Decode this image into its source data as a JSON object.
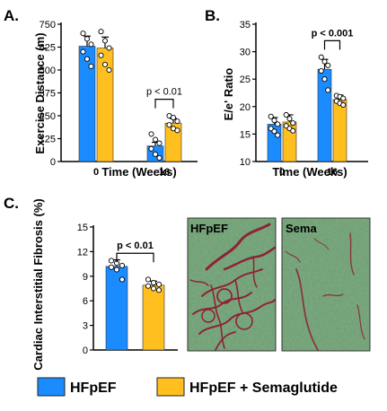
{
  "colors": {
    "hfpef": "#1a8cff",
    "sema": "#ffbf1f",
    "tissue_green": "#6f9e72",
    "fibrosis_red": "#8c2336"
  },
  "legend": [
    {
      "label": "HFpEF",
      "color": "#1a8cff"
    },
    {
      "label": "HFpEF + Semaglutide",
      "color": "#ffbf1f"
    }
  ],
  "chart_data": [
    {
      "panel": "A.",
      "type": "bar",
      "ylabel": "Exercise Distance (m)",
      "xlabel": "Time (Weeks)",
      "categories": [
        "0",
        "16"
      ],
      "ylim": [
        0,
        750
      ],
      "yticks": [
        "0",
        "125",
        "250",
        "375",
        "500",
        "625",
        "750"
      ],
      "series": [
        {
          "name": "HFpEF",
          "values": [
            630,
            85
          ],
          "errors": [
            55,
            20
          ],
          "points": [
            [
              700,
              670,
              640,
              600,
              560,
              520
            ],
            [
              150,
              120,
              100,
              70,
              40,
              20
            ]
          ]
        },
        {
          "name": "HFpEF + Semaglutide",
          "values": [
            620,
            210
          ],
          "errors": [
            60,
            25
          ],
          "points": [
            [
              710,
              660,
              620,
              580,
              530,
              500
            ],
            [
              250,
              240,
              220,
              200,
              180,
              170
            ]
          ]
        }
      ],
      "annotation": {
        "text": "p < 0.01",
        "category": "16"
      }
    },
    {
      "panel": "B.",
      "type": "bar",
      "ylabel": "E/e' Ratio",
      "xlabel": "Time (Weeks)",
      "categories": [
        "0",
        "16"
      ],
      "ylim": [
        10,
        35
      ],
      "yticks": [
        "10",
        "15",
        "20",
        "25",
        "30",
        "35"
      ],
      "series": [
        {
          "name": "HFpEF",
          "values": [
            16.8,
            26.8
          ],
          "errors": [
            1.2,
            1.8
          ],
          "points": [
            [
              18.2,
              17.5,
              16.8,
              16.0,
              15.5,
              14.8
            ],
            [
              29.0,
              28.2,
              27.5,
              26.5,
              25.0,
              23.0
            ]
          ]
        },
        {
          "name": "HFpEF + Semaglutide",
          "values": [
            17.2,
            21.3
          ],
          "errors": [
            1.3,
            0.8
          ],
          "points": [
            [
              18.5,
              17.8,
              17.0,
              16.5,
              16.0,
              15.6
            ],
            [
              22.0,
              21.8,
              21.5,
              21.0,
              20.6,
              20.3
            ]
          ]
        }
      ],
      "annotation": {
        "text": "p < 0.001",
        "category": "16"
      }
    },
    {
      "panel": "C.",
      "type": "bar",
      "ylabel": "Cardiac Interstitial Fibrosis (%)",
      "xlabel": "",
      "categories": [
        "HFpEF",
        "HFpEF + Semaglutide"
      ],
      "ylim": [
        0,
        15
      ],
      "yticks": [
        "0",
        "3",
        "6",
        "9",
        "12",
        "15"
      ],
      "series": [
        {
          "name": "",
          "values": [
            10.2,
            7.9
          ],
          "errors": [
            0.8,
            0.5
          ],
          "points": [
            [
              10.9,
              10.6,
              10.3,
              10.1,
              9.8,
              8.6
            ],
            [
              8.6,
              8.2,
              8.0,
              7.8,
              7.5,
              7.3
            ]
          ]
        }
      ],
      "annotation": {
        "text": "p < 0.01",
        "category": "both"
      }
    }
  ],
  "micrographs": [
    {
      "label": "HFpEF"
    },
    {
      "label": "Sema"
    }
  ]
}
